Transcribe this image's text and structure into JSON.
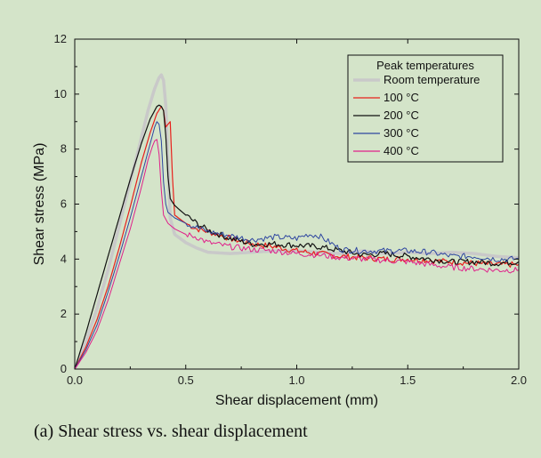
{
  "caption": "(a) Shear stress vs. shear displacement",
  "chart_data": {
    "type": "line",
    "xlabel": "Shear displacement (mm)",
    "ylabel": "Shear stress (MPa)",
    "xlim": [
      0,
      2.0
    ],
    "ylim": [
      0,
      12
    ],
    "xticks": [
      0.0,
      0.5,
      1.0,
      1.5,
      2.0
    ],
    "xtick_labels": [
      "0.0",
      "0.5",
      "1.0",
      "1.5",
      "2.0"
    ],
    "yticks": [
      0,
      2,
      4,
      6,
      8,
      10,
      12
    ],
    "ytick_labels": [
      "0",
      "2",
      "4",
      "6",
      "8",
      "10",
      "12"
    ],
    "grid": false,
    "legend": {
      "title": "Peak temperatures",
      "placement": "top-right"
    },
    "series": [
      {
        "name": "Room temperature",
        "color": "#c9c9c9",
        "width": 3.5,
        "x": [
          0,
          0.05,
          0.1,
          0.15,
          0.2,
          0.25,
          0.3,
          0.33,
          0.36,
          0.38,
          0.39,
          0.4,
          0.41,
          0.42,
          0.43,
          0.45,
          0.5,
          0.55,
          0.6,
          0.7,
          0.8,
          0.9,
          1.0,
          1.1,
          1.2,
          1.3,
          1.4,
          1.5,
          1.6,
          1.7,
          1.8,
          1.9,
          2.0
        ],
        "y": [
          0,
          1.0,
          2.2,
          3.6,
          5.2,
          6.8,
          8.4,
          9.4,
          10.2,
          10.6,
          10.7,
          10.5,
          9.6,
          7.5,
          5.5,
          4.9,
          4.6,
          4.4,
          4.25,
          4.2,
          4.25,
          4.3,
          4.3,
          4.25,
          4.2,
          4.3,
          4.2,
          4.25,
          4.2,
          4.25,
          4.2,
          4.1,
          4.05
        ]
      },
      {
        "name": "100 °C",
        "color": "#e8201c",
        "width": 1.2,
        "x": [
          0,
          0.05,
          0.1,
          0.15,
          0.2,
          0.25,
          0.3,
          0.34,
          0.37,
          0.39,
          0.4,
          0.41,
          0.42,
          0.43,
          0.44,
          0.45,
          0.5,
          0.55,
          0.6,
          0.7,
          0.8,
          0.9,
          1.0,
          1.1,
          1.2,
          1.3,
          1.4,
          1.5,
          1.6,
          1.7,
          1.8,
          1.9,
          2.0
        ],
        "y": [
          0,
          0.8,
          1.8,
          3.0,
          4.4,
          5.9,
          7.5,
          8.6,
          9.3,
          9.55,
          9.4,
          8.8,
          8.9,
          9.0,
          7.0,
          5.6,
          5.3,
          5.1,
          5.0,
          4.75,
          4.55,
          4.45,
          4.3,
          4.2,
          4.1,
          4.05,
          4.0,
          4.0,
          3.95,
          3.9,
          3.85,
          3.8,
          3.8
        ]
      },
      {
        "name": "200 °C",
        "color": "#111111",
        "width": 1.2,
        "x": [
          0,
          0.05,
          0.1,
          0.15,
          0.2,
          0.25,
          0.3,
          0.34,
          0.37,
          0.38,
          0.39,
          0.4,
          0.41,
          0.42,
          0.43,
          0.45,
          0.5,
          0.55,
          0.6,
          0.7,
          0.8,
          0.9,
          1.0,
          1.1,
          1.2,
          1.3,
          1.4,
          1.5,
          1.6,
          1.7,
          1.8,
          1.9,
          2.0
        ],
        "y": [
          0,
          1.3,
          2.7,
          4.1,
          5.5,
          6.9,
          8.2,
          9.1,
          9.55,
          9.6,
          9.55,
          9.4,
          8.5,
          7.0,
          6.2,
          5.95,
          5.6,
          5.3,
          5.05,
          4.75,
          4.55,
          4.55,
          4.5,
          4.45,
          4.3,
          4.15,
          4.2,
          4.1,
          4.0,
          3.9,
          3.9,
          3.85,
          3.9
        ]
      },
      {
        "name": "300 °C",
        "color": "#2e46a0",
        "width": 1.0,
        "x": [
          0,
          0.05,
          0.1,
          0.15,
          0.2,
          0.25,
          0.3,
          0.34,
          0.36,
          0.37,
          0.38,
          0.39,
          0.4,
          0.41,
          0.42,
          0.45,
          0.5,
          0.55,
          0.6,
          0.7,
          0.8,
          0.9,
          1.0,
          1.05,
          1.1,
          1.15,
          1.2,
          1.3,
          1.4,
          1.5,
          1.6,
          1.7,
          1.8,
          1.9,
          2.0
        ],
        "y": [
          0,
          0.7,
          1.6,
          2.8,
          4.1,
          5.5,
          7.0,
          8.2,
          8.8,
          9.0,
          8.9,
          8.3,
          6.8,
          6.0,
          5.7,
          5.5,
          5.3,
          5.15,
          5.0,
          4.85,
          4.7,
          4.8,
          4.75,
          4.9,
          4.85,
          4.6,
          4.35,
          4.3,
          4.3,
          4.3,
          4.25,
          4.1,
          4.1,
          4.0,
          4.0
        ]
      },
      {
        "name": "400 °C",
        "color": "#e0208a",
        "width": 1.0,
        "x": [
          0,
          0.05,
          0.1,
          0.15,
          0.2,
          0.25,
          0.3,
          0.33,
          0.35,
          0.36,
          0.37,
          0.38,
          0.39,
          0.4,
          0.42,
          0.45,
          0.5,
          0.55,
          0.6,
          0.7,
          0.8,
          0.9,
          1.0,
          1.1,
          1.2,
          1.3,
          1.4,
          1.5,
          1.6,
          1.7,
          1.8,
          1.9,
          2.0
        ],
        "y": [
          0,
          0.6,
          1.4,
          2.5,
          3.8,
          5.1,
          6.6,
          7.6,
          8.1,
          8.3,
          8.35,
          7.8,
          6.5,
          5.6,
          5.3,
          5.1,
          4.9,
          4.8,
          4.6,
          4.45,
          4.35,
          4.3,
          4.2,
          4.15,
          4.05,
          4.0,
          3.95,
          3.9,
          3.8,
          3.7,
          3.65,
          3.6,
          3.6
        ]
      }
    ]
  }
}
